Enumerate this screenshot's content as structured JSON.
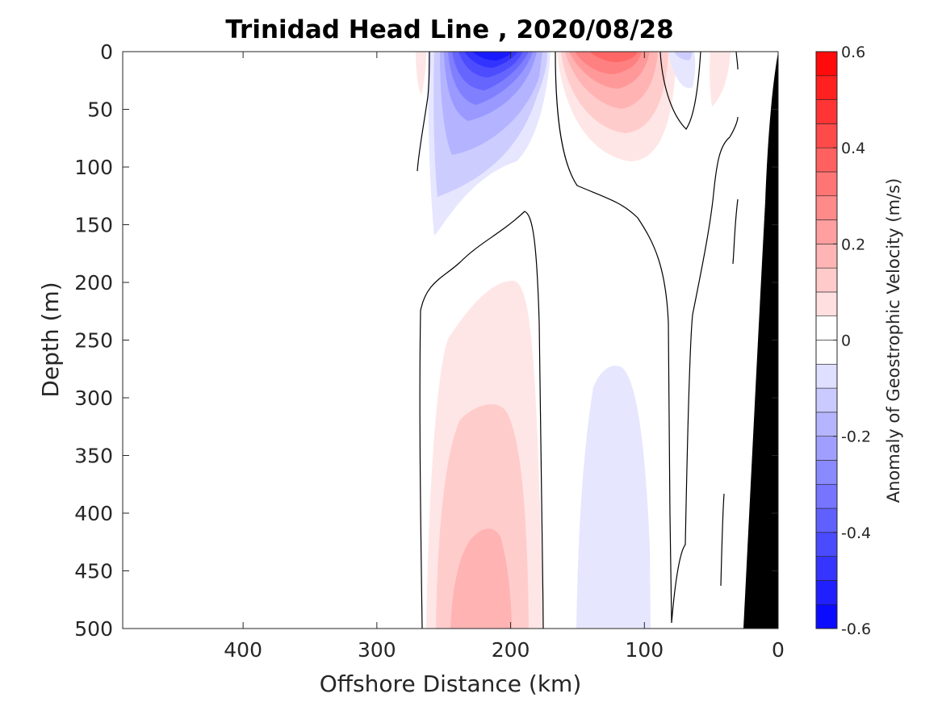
{
  "chart_data": {
    "type": "heatmap",
    "title": "Trinidad Head Line , 2020/08/28",
    "xlabel": "Offshore Distance (km)",
    "ylabel": "Depth (m)",
    "xlim": [
      490,
      0
    ],
    "ylim": [
      0,
      500
    ],
    "x_reversed": true,
    "y_reversed": true,
    "xticks": [
      400,
      300,
      200,
      100,
      0
    ],
    "xtick_labels": [
      "400",
      "300",
      "200",
      "100",
      "0"
    ],
    "yticks": [
      0,
      50,
      100,
      150,
      200,
      250,
      300,
      350,
      400,
      450,
      500
    ],
    "ytick_labels": [
      "0",
      "50",
      "100",
      "150",
      "200",
      "250",
      "300",
      "350",
      "400",
      "450",
      "500"
    ],
    "colorbar": {
      "label": "Anomaly of Geostrophic Velocity (m/s)",
      "range": [
        -0.6,
        0.6
      ],
      "step": 0.05,
      "ticks": [
        0.6,
        0.4,
        0.2,
        0,
        -0.2,
        -0.4,
        -0.6
      ],
      "tick_labels": [
        "0.6",
        "0.4",
        "0.2",
        "0",
        "-0.2",
        "-0.4",
        "-0.6"
      ],
      "positive_color": "#ff0000",
      "negative_color": "#0000ff",
      "zero_color": "#ffffff"
    },
    "anomaly_cores": [
      {
        "sign": "negative",
        "center_km": 205,
        "center_depth_m": 10,
        "peak_value": -0.5
      },
      {
        "sign": "positive",
        "center_km": 120,
        "center_depth_m": 10,
        "peak_value": 0.3
      },
      {
        "sign": "negative",
        "center_km": 72,
        "center_depth_m": 5,
        "peak_value": -0.1
      },
      {
        "sign": "positive",
        "center_km": 40,
        "center_depth_m": 15,
        "peak_value": 0.1
      },
      {
        "sign": "positive",
        "center_km": 215,
        "center_depth_m": 480,
        "peak_value": 0.25
      },
      {
        "sign": "negative",
        "center_km": 120,
        "center_depth_m": 420,
        "peak_value": -0.1
      }
    ],
    "bathymetry": {
      "color": "#000000",
      "note": "seafloor wedge at coast"
    },
    "grid": false
  }
}
